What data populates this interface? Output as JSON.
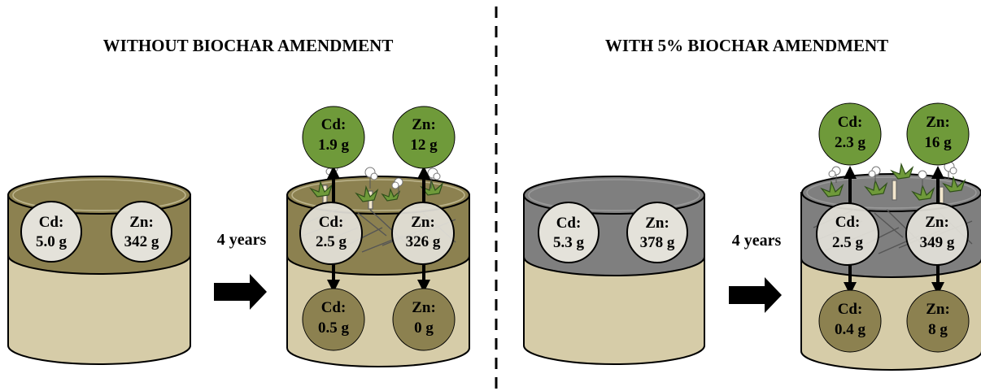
{
  "panels": {
    "left": {
      "title": "WITHOUT BIOCHAR AMENDMENT",
      "initial": {
        "cd": [
          "Cd:",
          "5.0 g"
        ],
        "zn": [
          "Zn:",
          "342 g"
        ]
      },
      "arrow_label": "4 years",
      "after": {
        "plant": {
          "cd": [
            "Cd:",
            "1.9 g"
          ],
          "zn": [
            "Zn:",
            "12 g"
          ]
        },
        "topsoil": {
          "cd": [
            "Cd:",
            "2.5 g"
          ],
          "zn": [
            "Zn:",
            "326 g"
          ]
        },
        "leached": {
          "cd": [
            "Cd:",
            "0.5 g"
          ],
          "zn": [
            "Zn:",
            "0 g"
          ]
        }
      }
    },
    "right": {
      "title": "WITH 5% BIOCHAR AMENDMENT",
      "initial": {
        "cd": [
          "Cd:",
          "5.3 g"
        ],
        "zn": [
          "Zn:",
          "378 g"
        ]
      },
      "arrow_label": "4 years",
      "after": {
        "plant": {
          "cd": [
            "Cd:",
            "2.3 g"
          ],
          "zn": [
            "Zn:",
            "16 g"
          ]
        },
        "topsoil": {
          "cd": [
            "Cd:",
            "2.5 g"
          ],
          "zn": [
            "Zn:",
            "349 g"
          ]
        },
        "leached": {
          "cd": [
            "Cd:",
            "0.4 g"
          ],
          "zn": [
            "Zn:",
            "8 g"
          ]
        }
      }
    }
  },
  "colors": {
    "topsoil_plain": "#8c8150",
    "topsoil_biochar": "#7f7f7f",
    "subsoil": "#d6cca8",
    "plant_circle": "#6f9a3a",
    "leached_circle": "#8c8150",
    "topsoil_circle": "#e4e2da"
  }
}
